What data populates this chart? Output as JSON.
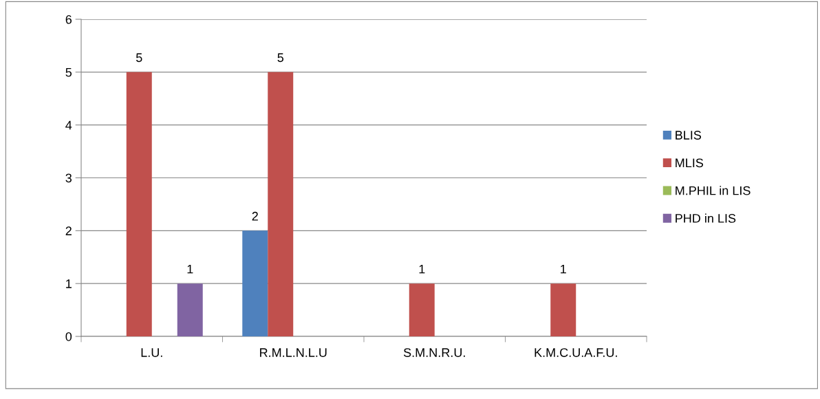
{
  "chart_data": {
    "type": "bar",
    "categories": [
      "L.U.",
      "R.M.L.N.L.U",
      "S.M.N.R.U.",
      "K.M.C.U.A.F.U."
    ],
    "series": [
      {
        "name": "BLIS",
        "color": "#4f81bd",
        "values": [
          null,
          2,
          null,
          null
        ]
      },
      {
        "name": "MLIS",
        "color": "#c0504d",
        "values": [
          5,
          5,
          1,
          1
        ]
      },
      {
        "name": "M.PHIL in LIS",
        "color": "#9bbb59",
        "values": [
          null,
          null,
          null,
          null
        ]
      },
      {
        "name": "PHD in LIS",
        "color": "#8064a2",
        "values": [
          1,
          null,
          null,
          null
        ]
      }
    ],
    "ylim": [
      0,
      6
    ],
    "yticks": [
      0,
      1,
      2,
      3,
      4,
      5,
      6
    ],
    "grid": "y",
    "legend": "right",
    "data_labels": true
  }
}
